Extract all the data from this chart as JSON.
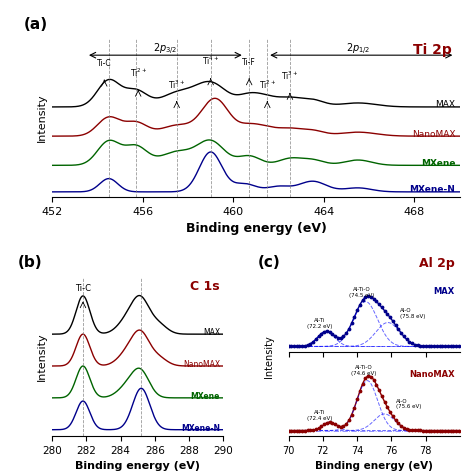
{
  "panel_a": {
    "title": "Ti 2p",
    "xlabel": "Binding energy (eV)",
    "ylabel": "Intensity",
    "xmin": 452,
    "xmax": 470,
    "xticks": [
      452,
      456,
      460,
      464,
      468
    ],
    "curves": [
      "MAX",
      "NanoMAX",
      "MXene",
      "MXene-N"
    ],
    "colors": [
      "black",
      "#8B0000",
      "#006400",
      "#00008B"
    ],
    "offsets": [
      3.2,
      2.1,
      1.0,
      0.0
    ],
    "dashed_lines": [
      454.5,
      455.7,
      457.5,
      459.0,
      460.7,
      461.5,
      462.5
    ]
  },
  "panel_b": {
    "title": "C 1s",
    "xlabel": "Binding energy (eV)",
    "ylabel": "Intensity",
    "xmin": 280,
    "xmax": 290,
    "xticks": [
      280,
      282,
      284,
      286,
      288,
      290
    ],
    "curves": [
      "MAX",
      "NanoMAX",
      "MXene",
      "MXene-N"
    ],
    "colors": [
      "black",
      "#8B0000",
      "#006400",
      "#00008B"
    ],
    "offsets": [
      3.0,
      2.0,
      1.0,
      0.0
    ],
    "dashed_lines": [
      281.8,
      285.2
    ]
  },
  "panel_c": {
    "title": "Al 2p",
    "xlabel": "Binding energy (eV)",
    "xmin": 70,
    "xmax": 80,
    "xticks": [
      70,
      72,
      74,
      76,
      78
    ],
    "top_label": "MAX",
    "bottom_label": "NanoMAX",
    "top_color": "#00008B",
    "bottom_color": "#8B0000"
  }
}
